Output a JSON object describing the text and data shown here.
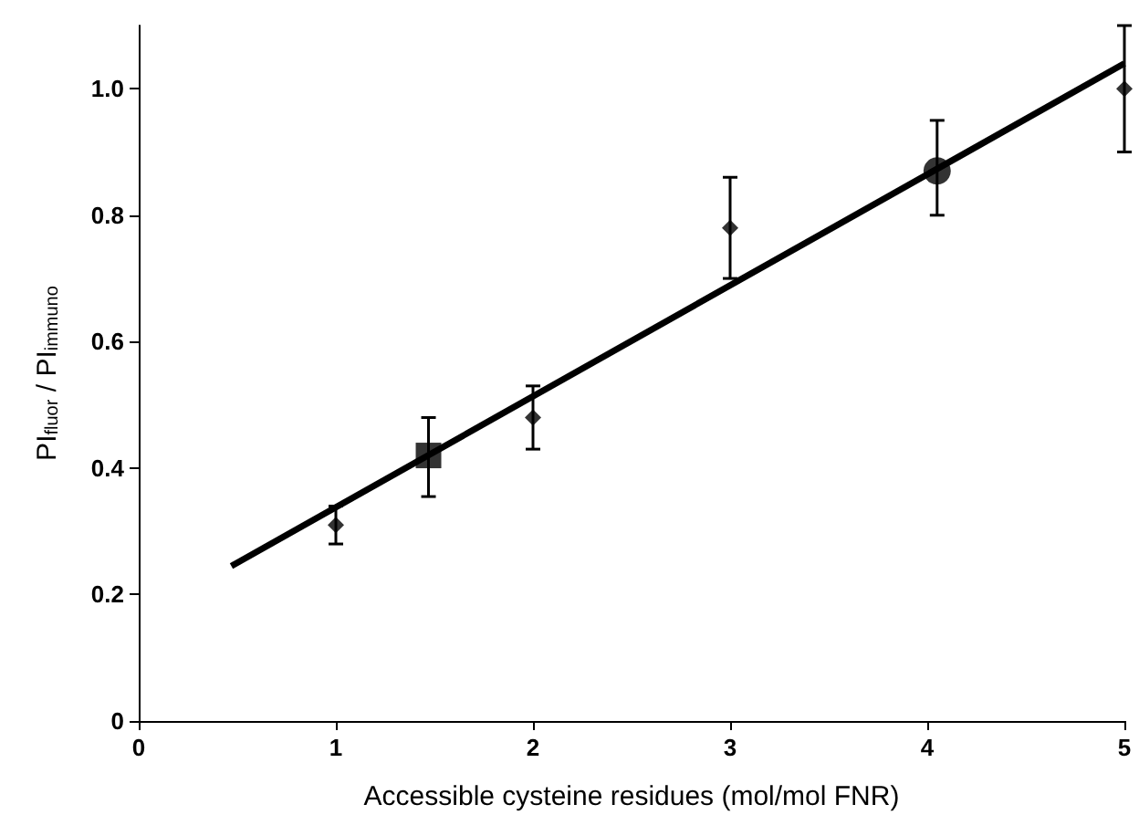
{
  "chart_data": {
    "type": "scatter",
    "xlabel": "Accessible cysteine residues (mol/mol FNR)",
    "ylabel": "PI$_{fluor}$ / PI$_{immuno}$",
    "xlim": [
      0,
      5
    ],
    "xticks": [
      0,
      1,
      2,
      3,
      4,
      5
    ],
    "ylim": [
      0,
      1.1
    ],
    "yticks": [
      0,
      0.2,
      0.4,
      0.6,
      0.8,
      {
        "value": 1,
        "label": "1.0"
      }
    ],
    "grid": false,
    "series": [
      {
        "marker": "diamond",
        "color": "#000000",
        "x": [
          1,
          2,
          3,
          5
        ],
        "values": [
          0.31,
          0.48,
          0.78,
          1.0
        ],
        "errors": [
          [
            0.28,
            0.34
          ],
          [
            0.43,
            0.53
          ],
          [
            0.7,
            0.86
          ],
          [
            0.9,
            1.1
          ]
        ]
      },
      {
        "marker": "square",
        "color": "#000000",
        "x": [
          1.47
        ],
        "values": [
          0.42
        ],
        "errors": [
          [
            0.355,
            0.48
          ]
        ]
      },
      {
        "marker": "circle",
        "color": "#000000",
        "x": [
          4.05
        ],
        "values": [
          0.87
        ],
        "errors": [
          [
            0.8,
            0.95
          ]
        ]
      },
      {
        "type": "line",
        "marker": "none",
        "line_style": "solid",
        "color": "#000000",
        "x": [
          0.47,
          5
        ],
        "values": [
          0.245,
          1.04
        ]
      }
    ]
  }
}
